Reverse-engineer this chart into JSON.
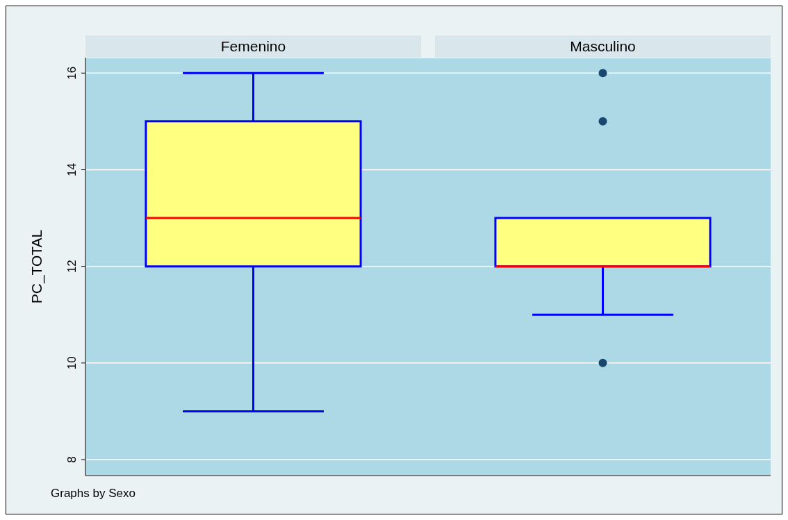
{
  "chart_data": {
    "type": "box",
    "ylabel": "PC_TOTAL",
    "categories": [
      "Femenino",
      "Masculino"
    ],
    "boxes": [
      {
        "low": 9,
        "q1": 12,
        "median": 13,
        "q3": 15,
        "high": 16
      },
      {
        "low": 11,
        "q1": 12,
        "median": 12,
        "q3": 13,
        "high": 13,
        "outliers": [
          16,
          15,
          10
        ]
      }
    ],
    "ylim": [
      7.67,
      16.32
    ],
    "yticks": [
      8,
      10,
      12,
      14,
      16
    ],
    "grid": "y",
    "annotations": [
      "Graphs by Sexo"
    ]
  }
}
